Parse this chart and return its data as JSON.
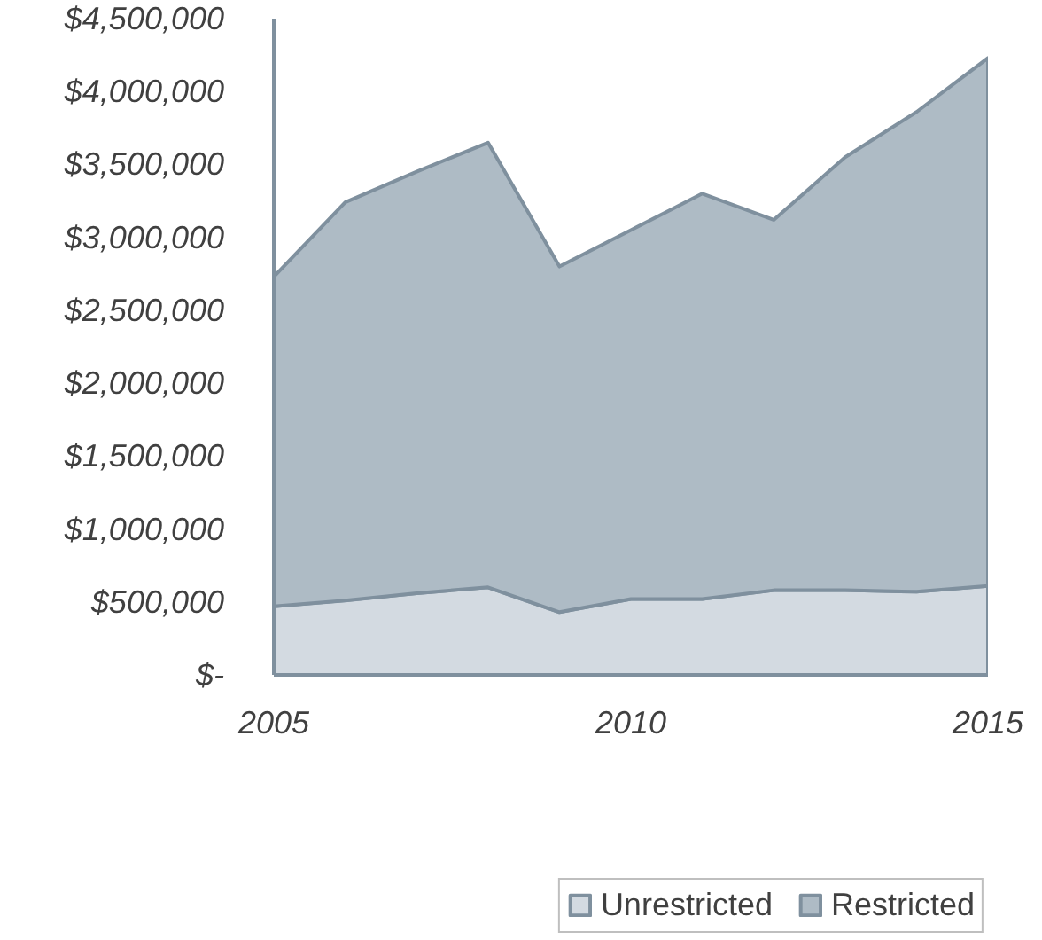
{
  "chart_data": {
    "type": "area",
    "stacked": true,
    "x": [
      2005,
      2006,
      2007,
      2008,
      2009,
      2010,
      2011,
      2012,
      2013,
      2014,
      2015
    ],
    "series": [
      {
        "name": "Unrestricted",
        "color": "#d3dae1",
        "values": [
          470000,
          510000,
          560000,
          600000,
          430000,
          520000,
          520000,
          580000,
          580000,
          570000,
          610000
        ]
      },
      {
        "name": "Restricted",
        "color": "#aebbc5",
        "values": [
          2260000,
          2730000,
          2890000,
          3050000,
          2370000,
          2530000,
          2780000,
          2540000,
          2970000,
          3290000,
          3620000
        ]
      }
    ],
    "xlim": [
      2005,
      2015
    ],
    "xticks": [
      2005,
      2010,
      2015
    ],
    "ylim": [
      0,
      4500000
    ],
    "yticks": [
      {
        "value": 0,
        "label": "$-"
      },
      {
        "value": 500000,
        "label": "$500,000"
      },
      {
        "value": 1000000,
        "label": "$1,000,000"
      },
      {
        "value": 1500000,
        "label": "$1,500,000"
      },
      {
        "value": 2000000,
        "label": "$2,000,000"
      },
      {
        "value": 2500000,
        "label": "$2,500,000"
      },
      {
        "value": 3000000,
        "label": "$3,000,000"
      },
      {
        "value": 3500000,
        "label": "$3,500,000"
      },
      {
        "value": 4000000,
        "label": "$4,000,000"
      },
      {
        "value": 4500000,
        "label": "$4,500,000"
      }
    ],
    "grid": false,
    "legend": "bottom"
  }
}
